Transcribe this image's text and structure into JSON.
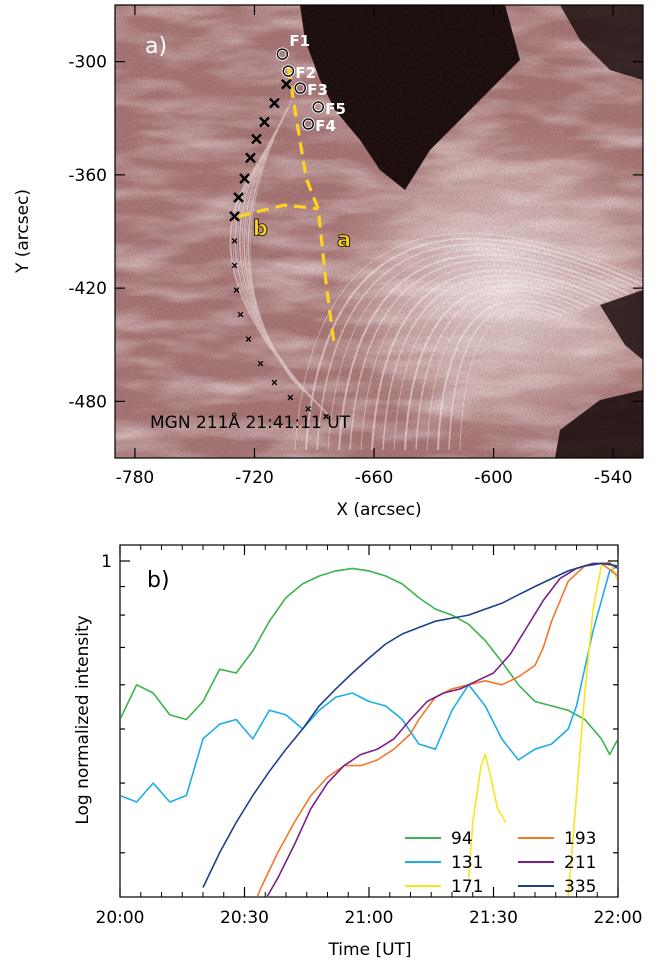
{
  "chart_data": [
    {
      "type": "image",
      "panel_label": "a)",
      "xlabel": "X (arcsec)",
      "ylabel": "Y (arcsec)",
      "xlim": [
        -790,
        -525
      ],
      "ylim": [
        -510,
        -270
      ],
      "xticks": [
        -780,
        -720,
        -660,
        -600,
        -540
      ],
      "yticks": [
        -300,
        -360,
        -420,
        -480
      ],
      "annotation": "MGN 211Å 21:41:11 UT",
      "colors": {
        "map_base": "#a67575",
        "map_light": "#f3e6e6",
        "map_dark": "#1a0c0c",
        "slit": "#ffd21e"
      },
      "features": [
        {
          "label": "F1",
          "x": -706,
          "y": -296
        },
        {
          "label": "F2",
          "x": -703,
          "y": -305
        },
        {
          "label": "F3",
          "x": -697,
          "y": -314
        },
        {
          "label": "F5",
          "x": -688,
          "y": -324
        },
        {
          "label": "F4",
          "x": -693,
          "y": -333
        }
      ],
      "slit_labels": [
        {
          "label": "b",
          "x": -717,
          "y": -392
        },
        {
          "label": "a",
          "x": -675,
          "y": -398
        }
      ],
      "slit_paths": [
        [
          [
            -703,
            -303
          ],
          [
            -699,
            -330
          ],
          [
            -694,
            -362
          ],
          [
            -688,
            -378
          ],
          [
            -684,
            -418
          ],
          [
            -680,
            -450
          ]
        ],
        [
          [
            -728,
            -382
          ],
          [
            -705,
            -376
          ],
          [
            -688,
            -378
          ]
        ]
      ],
      "big_crosses": [
        [
          -704,
          -312
        ],
        [
          -710,
          -322
        ],
        [
          -715,
          -332
        ],
        [
          -719,
          -341
        ],
        [
          -722,
          -351
        ],
        [
          -725,
          -362
        ],
        [
          -728,
          -372
        ],
        [
          -730,
          -382
        ]
      ],
      "small_crosses": [
        [
          -730,
          -395
        ],
        [
          -730,
          -408
        ],
        [
          -729,
          -421
        ],
        [
          -727,
          -434
        ],
        [
          -723,
          -447
        ],
        [
          -717,
          -460
        ],
        [
          -710,
          -470
        ],
        [
          -702,
          -478
        ],
        [
          -693,
          -484
        ],
        [
          -684,
          -488
        ]
      ]
    },
    {
      "type": "line",
      "panel_label": "b)",
      "xlabel": "Time [UT]",
      "ylabel": "Log normalized intensity",
      "x_unit": "minutes after 20:00",
      "xlim": [
        0,
        120
      ],
      "xticks": [
        0,
        30,
        60,
        90,
        120
      ],
      "xticklabels": [
        "20:00",
        "20:30",
        "21:00",
        "21:30",
        "22:00"
      ],
      "yscale": "log",
      "ylim": [
        0.25,
        1.0
      ],
      "ytick_label": "1",
      "legend_position": "bottom-right",
      "series": [
        {
          "name": "94",
          "color": "#3cb44b",
          "x": [
            0,
            4,
            8,
            12,
            16,
            20,
            24,
            28,
            32,
            36,
            40,
            44,
            48,
            52,
            56,
            60,
            64,
            68,
            72,
            76,
            80,
            84,
            88,
            92,
            96,
            100,
            104,
            108,
            112,
            116,
            118,
            120
          ],
          "y": [
            0.52,
            0.6,
            0.58,
            0.53,
            0.52,
            0.56,
            0.64,
            0.63,
            0.69,
            0.78,
            0.86,
            0.91,
            0.94,
            0.96,
            0.97,
            0.96,
            0.94,
            0.91,
            0.86,
            0.82,
            0.8,
            0.77,
            0.72,
            0.66,
            0.6,
            0.56,
            0.55,
            0.54,
            0.52,
            0.48,
            0.45,
            0.48
          ]
        },
        {
          "name": "131",
          "color": "#1eaee6",
          "x": [
            0,
            4,
            8,
            12,
            16,
            20,
            24,
            28,
            32,
            36,
            40,
            44,
            48,
            52,
            56,
            60,
            64,
            68,
            72,
            76,
            80,
            84,
            88,
            92,
            96,
            100,
            104,
            108,
            110,
            114,
            118,
            120
          ],
          "y": [
            0.38,
            0.37,
            0.4,
            0.37,
            0.38,
            0.48,
            0.51,
            0.52,
            0.48,
            0.54,
            0.53,
            0.5,
            0.54,
            0.57,
            0.58,
            0.56,
            0.55,
            0.52,
            0.47,
            0.46,
            0.54,
            0.6,
            0.55,
            0.48,
            0.44,
            0.46,
            0.47,
            0.5,
            0.55,
            0.75,
            0.96,
            0.98
          ]
        },
        {
          "name": "171",
          "color": "#f5e61e",
          "x": [
            84,
            85,
            87,
            88,
            89,
            91,
            93,
            108,
            110,
            112,
            114,
            116,
            118,
            120
          ],
          "y": [
            0.27,
            0.34,
            0.43,
            0.45,
            0.42,
            0.36,
            0.34,
            0.25,
            0.38,
            0.58,
            0.82,
            0.98,
            1.0,
            0.92
          ]
        },
        {
          "name": "193",
          "color": "#f07828",
          "x": [
            30,
            34,
            38,
            42,
            46,
            50,
            54,
            58,
            62,
            66,
            70,
            72,
            76,
            80,
            84,
            88,
            92,
            96,
            100,
            102,
            104,
            108,
            112,
            116,
            120
          ],
          "y": [
            0.22,
            0.26,
            0.3,
            0.34,
            0.38,
            0.41,
            0.43,
            0.43,
            0.44,
            0.46,
            0.49,
            0.52,
            0.57,
            0.59,
            0.6,
            0.61,
            0.6,
            0.62,
            0.65,
            0.7,
            0.78,
            0.92,
            0.98,
            0.99,
            0.94
          ]
        },
        {
          "name": "211",
          "color": "#7a1f8c",
          "x": [
            34,
            38,
            42,
            46,
            50,
            54,
            58,
            62,
            66,
            70,
            74,
            78,
            82,
            86,
            90,
            94,
            98,
            102,
            106,
            110,
            114,
            118,
            120
          ],
          "y": [
            0.24,
            0.27,
            0.31,
            0.36,
            0.4,
            0.43,
            0.45,
            0.46,
            0.48,
            0.52,
            0.56,
            0.58,
            0.59,
            0.61,
            0.63,
            0.68,
            0.76,
            0.85,
            0.93,
            0.97,
            0.99,
            0.99,
            0.97
          ]
        },
        {
          "name": "335",
          "color": "#1f3f8c",
          "x": [
            20,
            24,
            28,
            32,
            36,
            40,
            44,
            48,
            52,
            56,
            60,
            64,
            68,
            72,
            76,
            80,
            84,
            88,
            92,
            96,
            100,
            104,
            108,
            112,
            116,
            120
          ],
          "y": [
            0.26,
            0.3,
            0.34,
            0.38,
            0.42,
            0.46,
            0.5,
            0.55,
            0.59,
            0.63,
            0.67,
            0.71,
            0.74,
            0.76,
            0.78,
            0.79,
            0.8,
            0.82,
            0.84,
            0.87,
            0.9,
            0.93,
            0.96,
            0.98,
            0.99,
            0.98
          ]
        }
      ]
    }
  ]
}
